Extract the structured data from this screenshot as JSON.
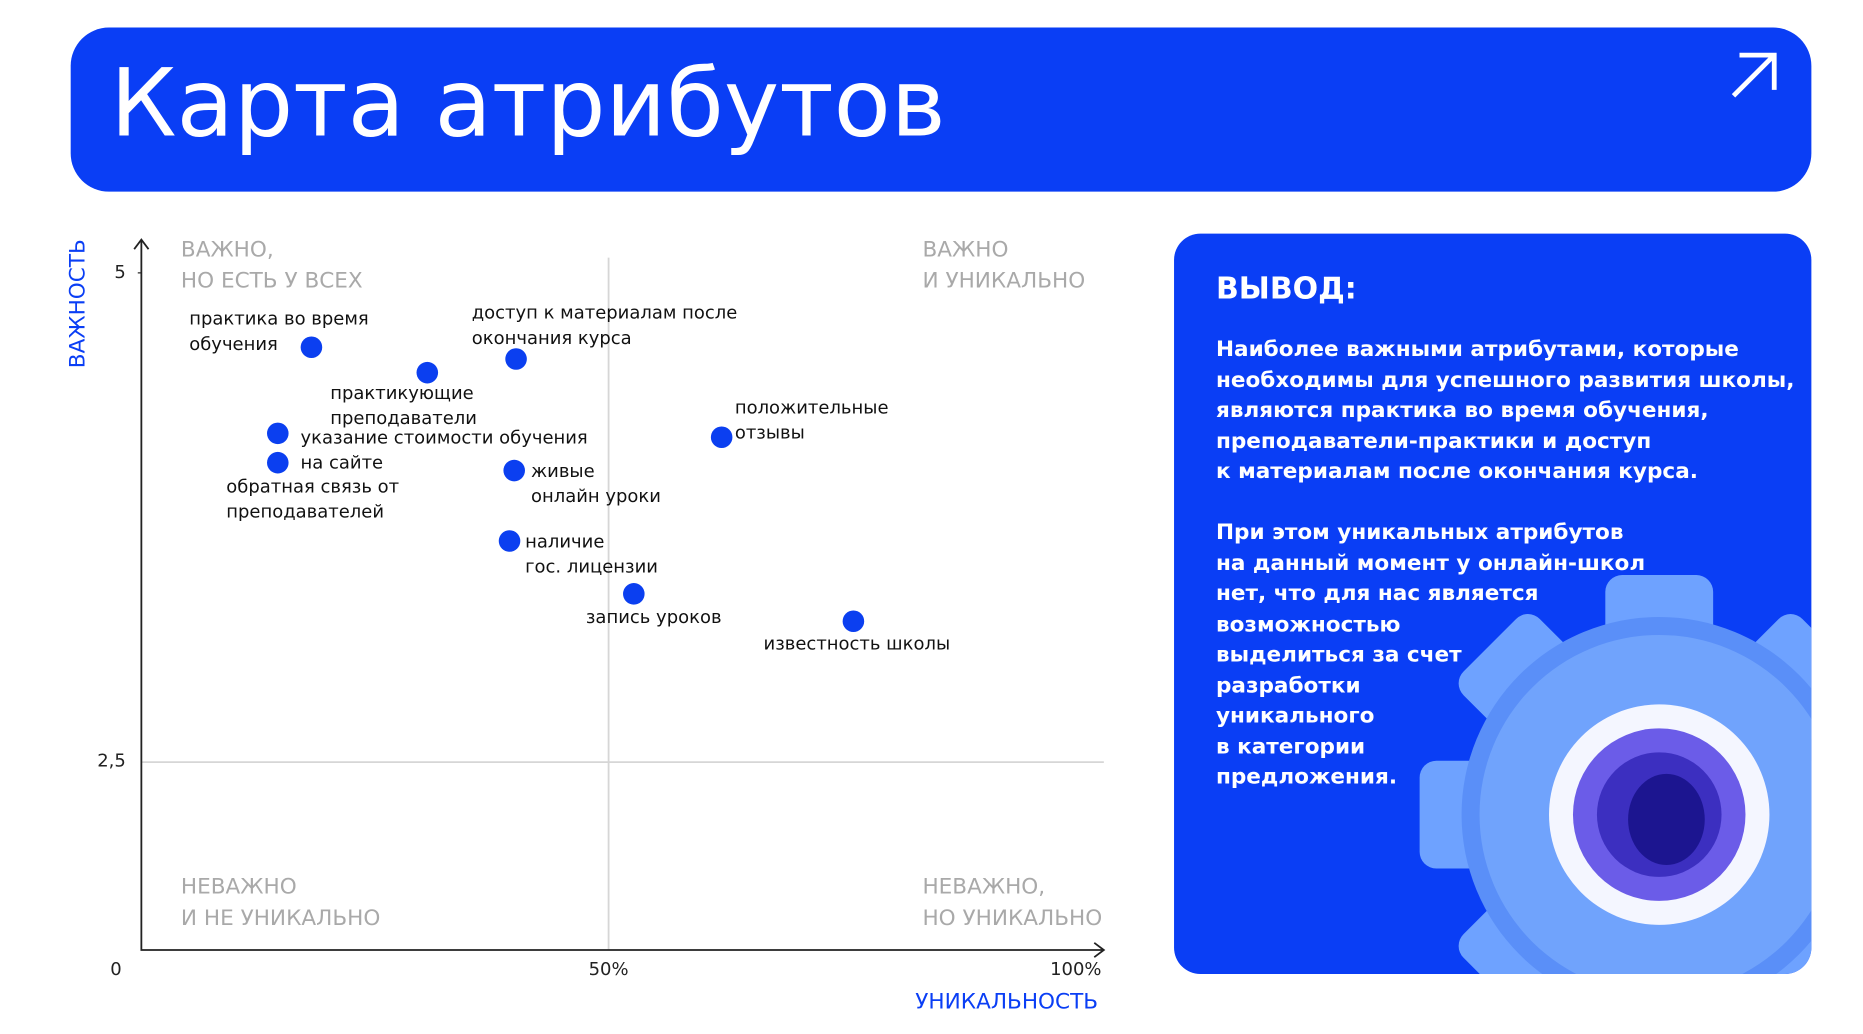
{
  "header": {
    "title": "Карта атрибутов"
  },
  "chart_data": {
    "type": "scatter",
    "x_label": "УНИКАЛЬНОСТЬ",
    "y_label": "ВАЖНОСТЬ",
    "quadrants": [
      "ВАЖНО,\nНО ЕСТЬ У ВСЕХ",
      "ВАЖНО\nИ УНИКАЛЬНО",
      "НЕВАЖНО\nИ НЕ УНИКАЛЬНО",
      "НЕВАЖНО,\nНО УНИКАЛЬНО"
    ],
    "xlim": [
      0,
      103
    ],
    "ylim": [
      1.54,
      5.17
    ],
    "xticks": [
      {
        "value": 50,
        "label": "50%"
      },
      {
        "value": 100,
        "label": "100%"
      }
    ],
    "origin_label": "0",
    "yticks": [
      {
        "value": 2.5,
        "label": "2,5"
      },
      5
    ],
    "series": [
      {
        "color": "#0b3ff0",
        "x": [
          18.2,
          30.6,
          40.1,
          62.1,
          14.6,
          14.6,
          39.9,
          39.4,
          52.7,
          76.2
        ],
        "values": [
          4.62,
          4.49,
          4.56,
          4.16,
          4.18,
          4.03,
          3.99,
          3.63,
          3.36,
          3.22
        ],
        "labels": [
          "практика во время\nобучения",
          "практикующие\nпреподаватели",
          "доступ к материалам после\nокончания курса",
          "положительные\nотзывы",
          "указание стоимости обучения\nна сайте",
          "обратная связь от\nпреподавателей",
          "живые\nонлайн уроки",
          "наличие\nгос. лицензии",
          "запись уроков",
          "известность школы"
        ]
      }
    ]
  },
  "conclusion": {
    "heading": "ВЫВОД:",
    "paragraphs": [
      "Наиболее важными атрибутами, которые\nнеобходимы для успешного развития школы,\nявляются практика во время обучения,\nпреподаватели-практики и доступ\nк материалам после окончания курса.",
      "При этом уникальных атрибутов\nна данный момент у онлайн-школ\nнет, что для нас является\nвозможностью\nвыделиться за счет\nразработки\nуникального\nв категории\nпредложения."
    ]
  }
}
